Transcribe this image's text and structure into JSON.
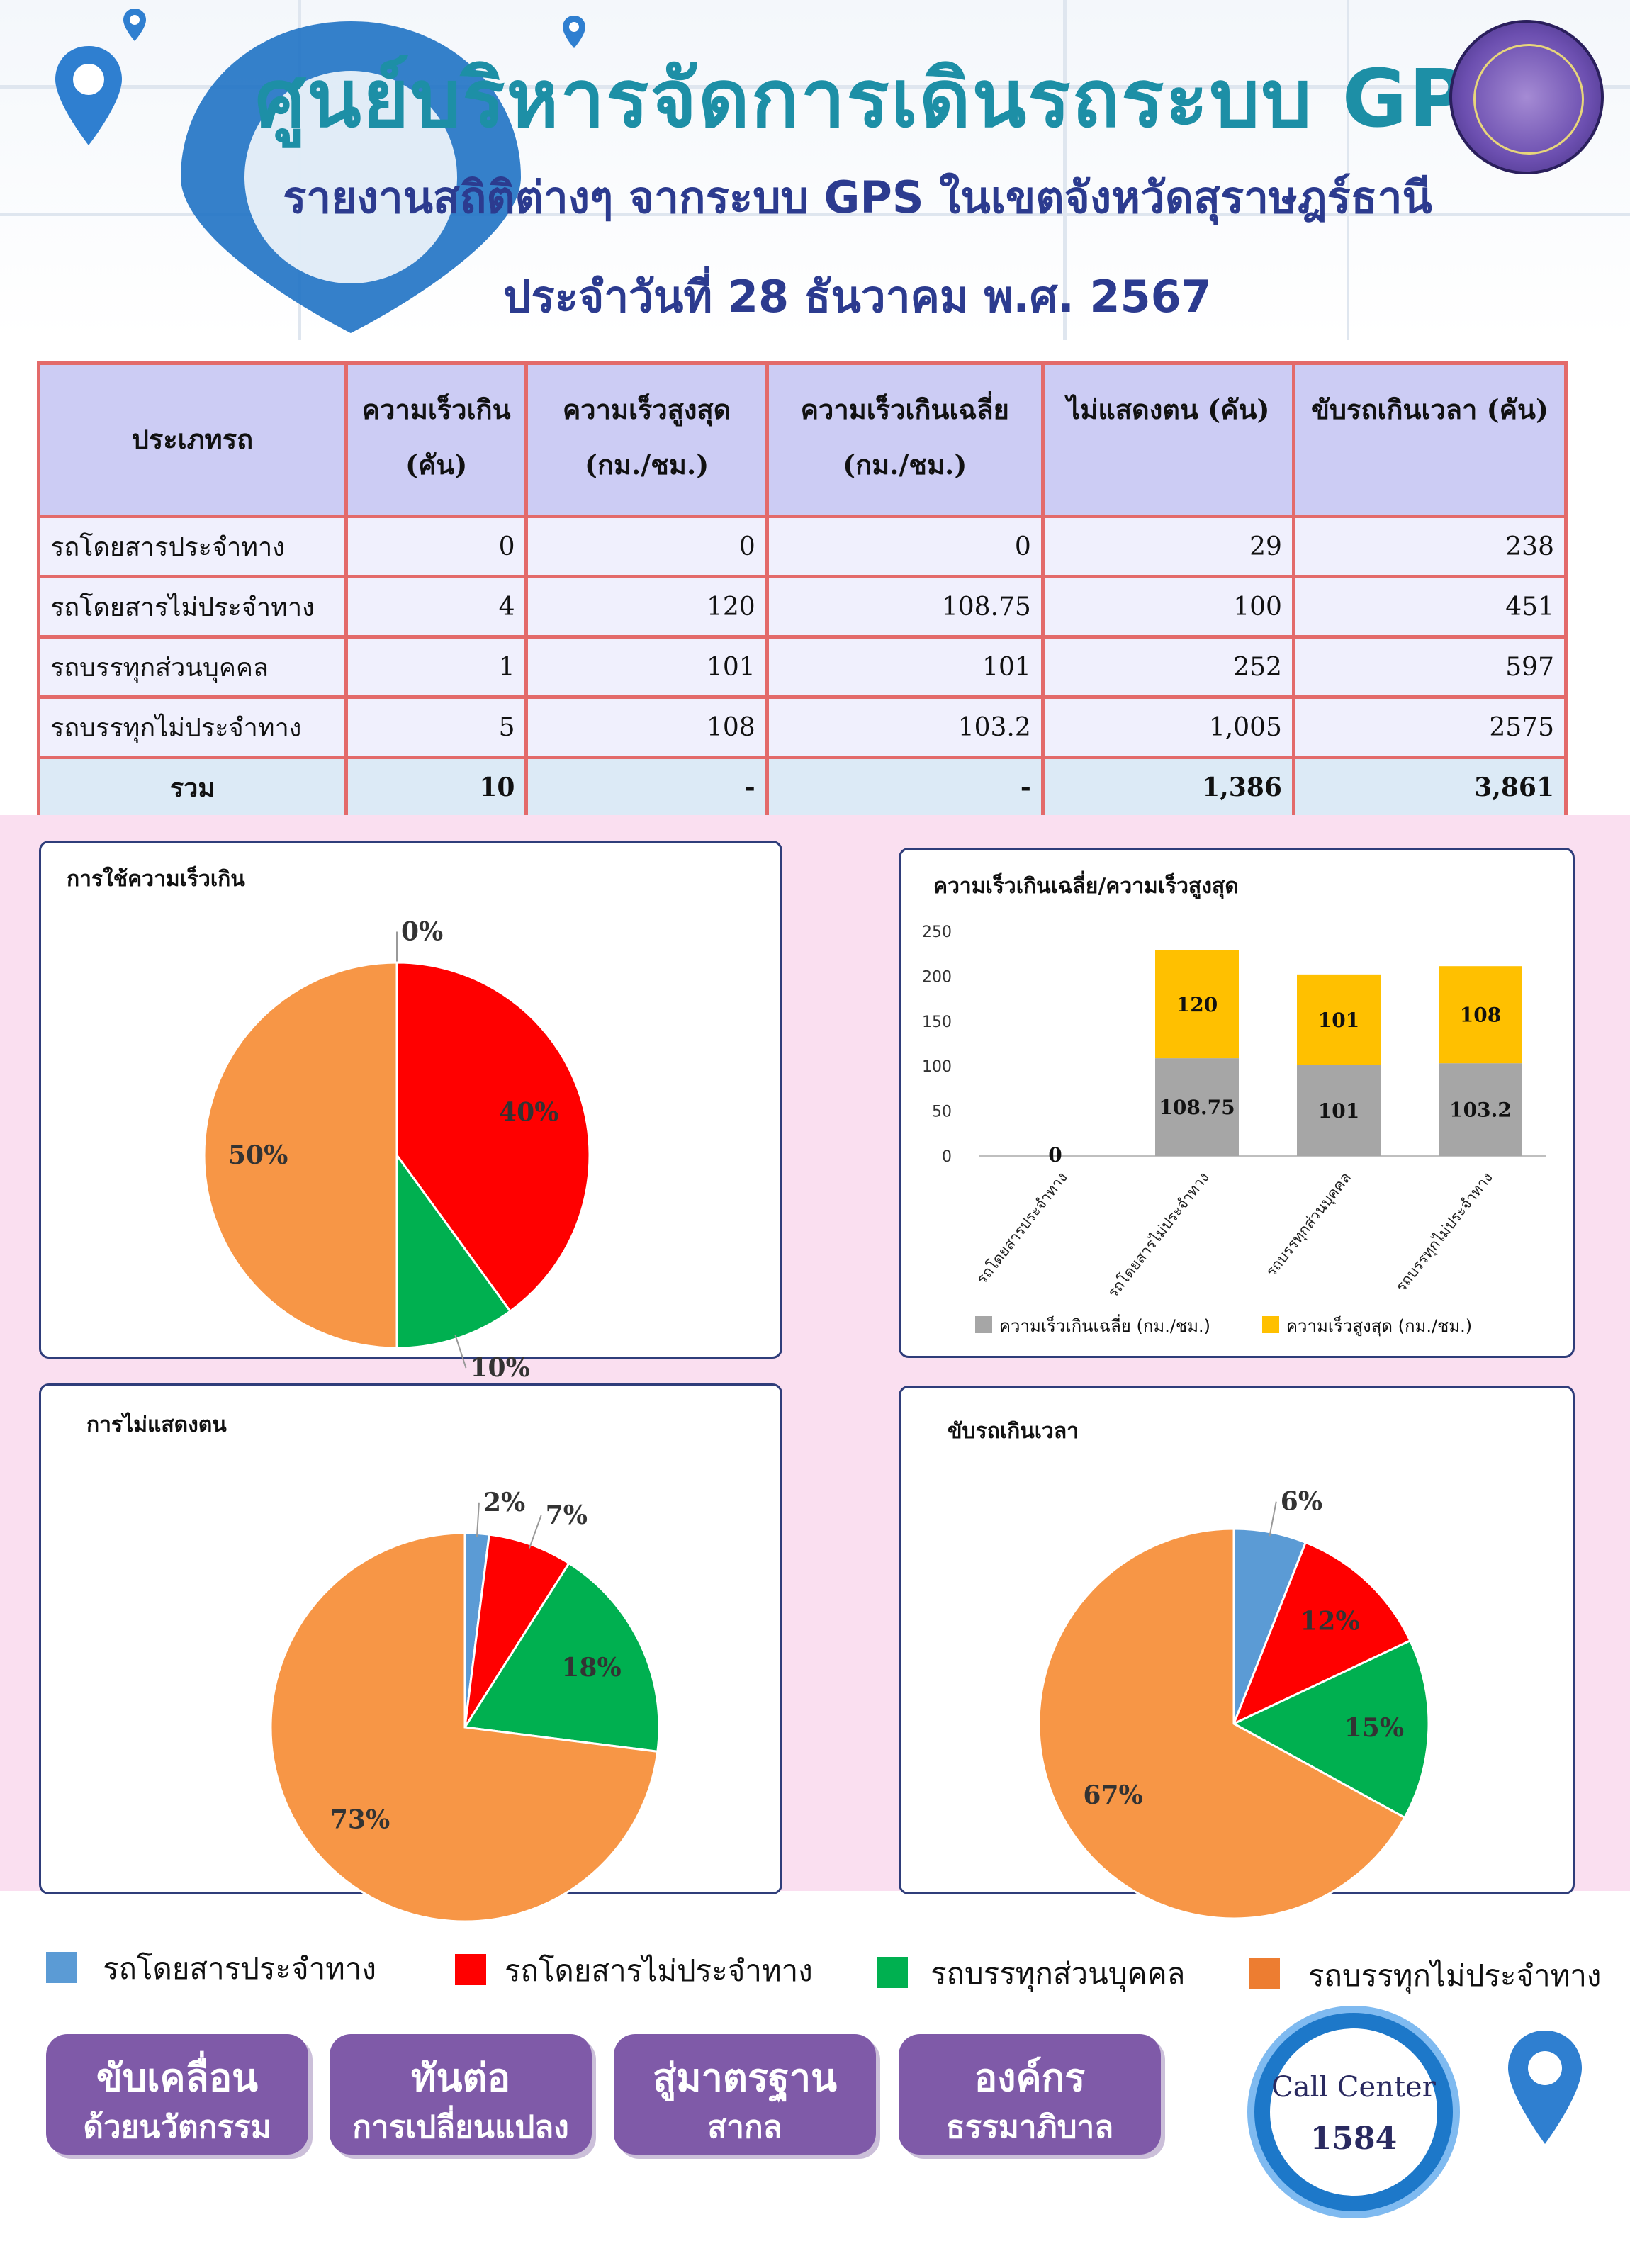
{
  "header": {
    "title": "ศูนย์บริหารจัดการเดินรถระบบ GPS",
    "subtitle": "รายงานสถิติต่างๆ จากระบบ GPS ในเขตจังหวัดสุราษฎร์ธานี",
    "date": "ประจำวันที่   28   ธันวาคม   พ.ศ. 2567"
  },
  "table": {
    "headers": [
      "ประเภทรถ",
      "ความเร็วเกิน\n(คัน)",
      "ความเร็วสูงสุด\n(กม./ชม.)",
      "ความเร็วเกินเฉลี่ย\n(กม./ชม.)",
      "ไม่แสดงตน (คัน)",
      "ขับรถเกินเวลา (คัน)"
    ],
    "rows": [
      [
        "รถโดยสารประจำทาง",
        "0",
        "0",
        "0",
        "29",
        "238"
      ],
      [
        "รถโดยสารไม่ประจำทาง",
        "4",
        "120",
        "108.75",
        "100",
        "451"
      ],
      [
        "รถบรรทุกส่วนบุคคล",
        "1",
        "101",
        "101",
        "252",
        "597"
      ],
      [
        "รถบรรทุกไม่ประจำทาง",
        "5",
        "108",
        "103.2",
        "1,005",
        "2575"
      ]
    ],
    "total": [
      "รวม",
      "10",
      "-",
      "-",
      "1,386",
      "3,861"
    ]
  },
  "colors": {
    "bus_fixed": "#5b9bd5",
    "bus_nonfixed": "#ff0000",
    "truck_private": "#00b050",
    "truck_nonfixed": "#f79646",
    "avg": "#a6a6a6",
    "max": "#ffc000"
  },
  "chart_data": [
    {
      "type": "pie",
      "title": "การใช้ความเร็วเกิน",
      "slices": [
        {
          "label": "รถโดยสารประจำทาง",
          "value": 0,
          "pct_label": "0%"
        },
        {
          "label": "รถโดยสารไม่ประจำทาง",
          "value": 40,
          "pct_label": "40%"
        },
        {
          "label": "รถบรรทุกส่วนบุคคล",
          "value": 10,
          "pct_label": "10%"
        },
        {
          "label": "รถบรรทุกไม่ประจำทาง",
          "value": 50,
          "pct_label": "50%"
        }
      ]
    },
    {
      "type": "bar",
      "stacked": true,
      "title": "ความเร็วเกินเฉลี่ย/ความเร็วสูงสุด",
      "categories": [
        "รถโดยสารประจำทาง",
        "รถโดยสารไม่ประจำทาง",
        "รถบรรทุกส่วนบุคคล",
        "รถบรรทุกไม่ประจำทาง"
      ],
      "series": [
        {
          "name": "ความเร็วเกินเฉลี่ย (กม./ชม.)",
          "values": [
            0,
            108.75,
            101,
            103.2
          ]
        },
        {
          "name": "ความเร็วสูงสุด (กม./ชม.)",
          "values": [
            0,
            120,
            101,
            108
          ]
        }
      ],
      "yticks": [
        "0",
        "50",
        "100",
        "150",
        "200",
        "250"
      ],
      "ylim": [
        0,
        250
      ],
      "legend": "bottom"
    },
    {
      "type": "pie",
      "title": "การไม่แสดงตน",
      "slices": [
        {
          "label": "รถโดยสารประจำทาง",
          "value": 2,
          "pct_label": "2%"
        },
        {
          "label": "รถโดยสารไม่ประจำทาง",
          "value": 7,
          "pct_label": "7%"
        },
        {
          "label": "รถบรรทุกส่วนบุคคล",
          "value": 18,
          "pct_label": "18%"
        },
        {
          "label": "รถบรรทุกไม่ประจำทาง",
          "value": 73,
          "pct_label": "73%"
        }
      ]
    },
    {
      "type": "pie",
      "title": "ขับรถเกินเวลา",
      "slices": [
        {
          "label": "รถโดยสารประจำทาง",
          "value": 6,
          "pct_label": "6%"
        },
        {
          "label": "รถโดยสารไม่ประจำทาง",
          "value": 12,
          "pct_label": "12%"
        },
        {
          "label": "รถบรรทุกส่วนบุคคล",
          "value": 15,
          "pct_label": "15%"
        },
        {
          "label": "รถบรรทุกไม่ประจำทาง",
          "value": 67,
          "pct_label": "67%"
        }
      ]
    }
  ],
  "legend": [
    "รถโดยสารประจำทาง",
    "รถโดยสารไม่ประจำทาง",
    "รถบรรทุกส่วนบุคคล",
    "รถบรรทุกไม่ประจำทาง"
  ],
  "badges": [
    {
      "line1": "ขับเคลื่อน",
      "line2": "ด้วยนวัตกรรม"
    },
    {
      "line1": "ทันต่อ",
      "line2": "การเปลี่ยนแปลง"
    },
    {
      "line1": "สู่มาตรฐาน",
      "line2": "สากล"
    },
    {
      "line1": "องค์กร",
      "line2": "ธรรมาภิบาล"
    }
  ],
  "call_center": {
    "label": "Call Center",
    "number": "1584"
  }
}
